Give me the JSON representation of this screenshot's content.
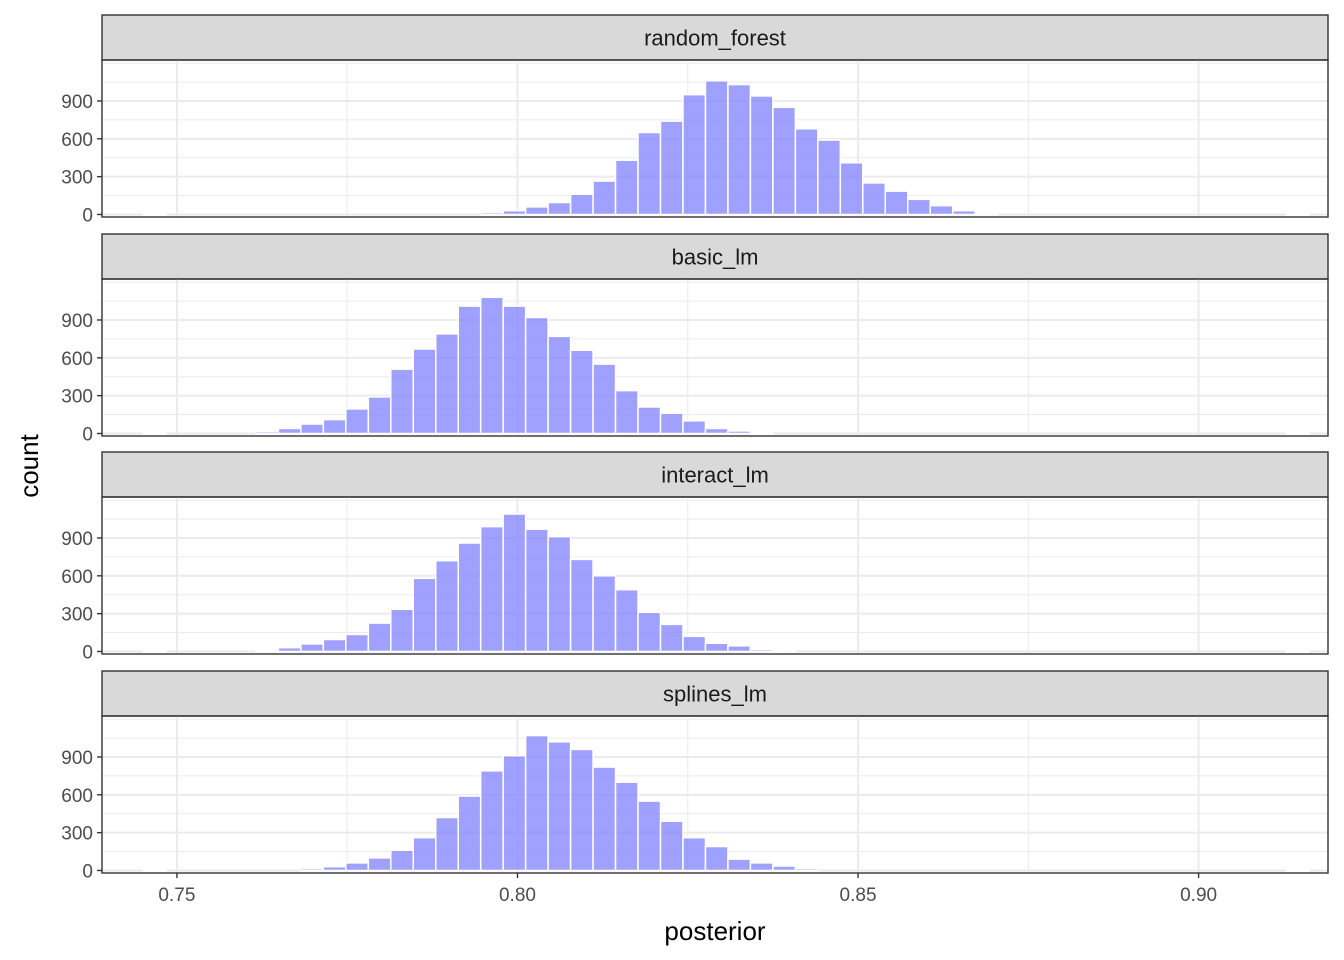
{
  "chart_data": {
    "type": "histogram",
    "facet_layout": "stacked-vertical",
    "xlabel": "posterior",
    "ylabel": "count",
    "xlim": [
      0.739,
      0.919
    ],
    "ylim": [
      -20,
      1225
    ],
    "x_ticks": [
      0.75,
      0.8,
      0.85,
      0.9
    ],
    "x_tick_labels": [
      "0.75",
      "0.80",
      "0.85",
      "0.90"
    ],
    "y_ticks": [
      0,
      300,
      600,
      900
    ],
    "y_tick_labels": [
      "0",
      "300",
      "600",
      "900"
    ],
    "bin_width": 0.0033,
    "bar_color": "#8080ff",
    "bar_opacity": 0.75,
    "strip_fill": "#d9d9d9",
    "grid": true,
    "panels": [
      {
        "name": "random_forest",
        "bins": [
          [
            0.7451,
            2
          ],
          [
            0.7946,
            15
          ],
          [
            0.7979,
            30
          ],
          [
            0.8012,
            60
          ],
          [
            0.8045,
            95
          ],
          [
            0.8078,
            160
          ],
          [
            0.8111,
            265
          ],
          [
            0.8144,
            430
          ],
          [
            0.8177,
            650
          ],
          [
            0.821,
            740
          ],
          [
            0.8243,
            950
          ],
          [
            0.8276,
            1060
          ],
          [
            0.8309,
            1030
          ],
          [
            0.8342,
            940
          ],
          [
            0.8375,
            850
          ],
          [
            0.8408,
            680
          ],
          [
            0.8441,
            590
          ],
          [
            0.8474,
            410
          ],
          [
            0.8507,
            250
          ],
          [
            0.854,
            185
          ],
          [
            0.8573,
            120
          ],
          [
            0.8606,
            70
          ],
          [
            0.8639,
            30
          ],
          [
            0.8672,
            10
          ],
          [
            0.9129,
            2
          ]
        ]
      },
      {
        "name": "basic_lm",
        "bins": [
          [
            0.7451,
            2
          ],
          [
            0.7616,
            15
          ],
          [
            0.7649,
            40
          ],
          [
            0.7682,
            75
          ],
          [
            0.7715,
            110
          ],
          [
            0.7748,
            195
          ],
          [
            0.7781,
            290
          ],
          [
            0.7814,
            510
          ],
          [
            0.7847,
            670
          ],
          [
            0.788,
            790
          ],
          [
            0.7913,
            1010
          ],
          [
            0.7946,
            1080
          ],
          [
            0.7979,
            1010
          ],
          [
            0.8012,
            920
          ],
          [
            0.8045,
            770
          ],
          [
            0.8078,
            660
          ],
          [
            0.8111,
            550
          ],
          [
            0.8144,
            340
          ],
          [
            0.8177,
            210
          ],
          [
            0.821,
            160
          ],
          [
            0.8243,
            100
          ],
          [
            0.8276,
            40
          ],
          [
            0.8309,
            20
          ],
          [
            0.8342,
            5
          ],
          [
            0.9129,
            2
          ]
        ]
      },
      {
        "name": "interact_lm",
        "bins": [
          [
            0.7451,
            2
          ],
          [
            0.7616,
            10
          ],
          [
            0.7649,
            30
          ],
          [
            0.7682,
            60
          ],
          [
            0.7715,
            95
          ],
          [
            0.7748,
            135
          ],
          [
            0.7781,
            225
          ],
          [
            0.7814,
            335
          ],
          [
            0.7847,
            580
          ],
          [
            0.788,
            720
          ],
          [
            0.7913,
            860
          ],
          [
            0.7946,
            990
          ],
          [
            0.7979,
            1090
          ],
          [
            0.8012,
            970
          ],
          [
            0.8045,
            910
          ],
          [
            0.8078,
            730
          ],
          [
            0.8111,
            600
          ],
          [
            0.8144,
            490
          ],
          [
            0.8177,
            310
          ],
          [
            0.821,
            215
          ],
          [
            0.8243,
            120
          ],
          [
            0.8276,
            65
          ],
          [
            0.8309,
            45
          ],
          [
            0.8342,
            15
          ],
          [
            0.8375,
            5
          ],
          [
            0.9129,
            2
          ]
        ]
      },
      {
        "name": "splines_lm",
        "bins": [
          [
            0.7451,
            2
          ],
          [
            0.7682,
            15
          ],
          [
            0.7715,
            30
          ],
          [
            0.7748,
            60
          ],
          [
            0.7781,
            100
          ],
          [
            0.7814,
            160
          ],
          [
            0.7847,
            260
          ],
          [
            0.788,
            420
          ],
          [
            0.7913,
            590
          ],
          [
            0.7946,
            790
          ],
          [
            0.7979,
            910
          ],
          [
            0.8012,
            1070
          ],
          [
            0.8045,
            1020
          ],
          [
            0.8078,
            960
          ],
          [
            0.8111,
            820
          ],
          [
            0.8144,
            700
          ],
          [
            0.8177,
            550
          ],
          [
            0.821,
            390
          ],
          [
            0.8243,
            260
          ],
          [
            0.8276,
            190
          ],
          [
            0.8309,
            90
          ],
          [
            0.8342,
            60
          ],
          [
            0.8375,
            35
          ],
          [
            0.8408,
            15
          ],
          [
            0.9129,
            2
          ]
        ]
      }
    ]
  }
}
